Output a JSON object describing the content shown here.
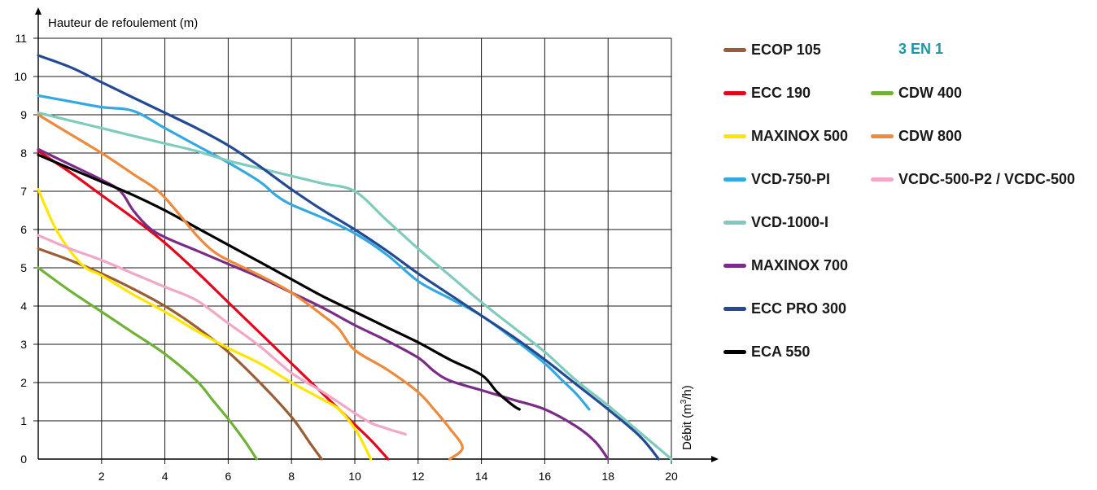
{
  "chart_data": {
    "type": "line",
    "ylabel": "Hauteur de refoulement (m)",
    "xlabel": "Débit (m³/h)",
    "xlabel_parts": {
      "pre": "Débit (m",
      "sup": "3",
      "post": "/h)"
    },
    "xlim": [
      0,
      20
    ],
    "ylim": [
      0,
      11
    ],
    "x_ticks": [
      2,
      4,
      6,
      8,
      10,
      12,
      14,
      16,
      18,
      20
    ],
    "y_ticks": [
      0,
      1,
      2,
      3,
      4,
      5,
      6,
      7,
      8,
      9,
      10,
      11
    ],
    "grid": true,
    "legend_group_title": "3 EN 1",
    "legend_group_color": "#1b96a4",
    "series": [
      {
        "name": "ECOP 105",
        "color": "#9b5e34",
        "points": [
          [
            0,
            5.5
          ],
          [
            1,
            5.2
          ],
          [
            2,
            4.85
          ],
          [
            3,
            4.45
          ],
          [
            4,
            4.0
          ],
          [
            5,
            3.45
          ],
          [
            6,
            2.8
          ],
          [
            7,
            2.0
          ],
          [
            8,
            1.1
          ],
          [
            8.6,
            0.4
          ],
          [
            8.95,
            0
          ]
        ]
      },
      {
        "name": "ECC 190",
        "color": "#e3061c",
        "points": [
          [
            0,
            8.05
          ],
          [
            1,
            7.5
          ],
          [
            2,
            6.9
          ],
          [
            3,
            6.3
          ],
          [
            4,
            5.65
          ],
          [
            5,
            4.9
          ],
          [
            6,
            4.1
          ],
          [
            7,
            3.3
          ],
          [
            8,
            2.5
          ],
          [
            9,
            1.7
          ],
          [
            10,
            0.9
          ],
          [
            10.5,
            0.5
          ],
          [
            11.05,
            0
          ]
        ]
      },
      {
        "name": "MAXINOX 500",
        "color": "#ffe600",
        "points": [
          [
            0,
            7.05
          ],
          [
            0.5,
            6.1
          ],
          [
            1,
            5.45
          ],
          [
            1.5,
            5.0
          ],
          [
            2,
            4.8
          ],
          [
            3,
            4.3
          ],
          [
            4,
            3.85
          ],
          [
            5,
            3.35
          ],
          [
            6,
            2.9
          ],
          [
            7,
            2.5
          ],
          [
            8,
            2.0
          ],
          [
            9,
            1.55
          ],
          [
            9.5,
            1.3
          ],
          [
            10,
            0.8
          ],
          [
            10.3,
            0.35
          ],
          [
            10.5,
            0
          ]
        ]
      },
      {
        "name": "VCD-750-PI",
        "color": "#34a9e1",
        "points": [
          [
            0,
            9.5
          ],
          [
            1,
            9.35
          ],
          [
            2,
            9.2
          ],
          [
            3,
            9.1
          ],
          [
            4,
            8.65
          ],
          [
            5,
            8.2
          ],
          [
            6,
            7.75
          ],
          [
            7,
            7.25
          ],
          [
            7.5,
            6.9
          ],
          [
            8,
            6.65
          ],
          [
            9,
            6.3
          ],
          [
            10,
            5.9
          ],
          [
            11,
            5.35
          ],
          [
            12,
            4.65
          ],
          [
            13,
            4.2
          ],
          [
            14,
            3.75
          ],
          [
            15,
            3.15
          ],
          [
            16,
            2.5
          ],
          [
            16.5,
            2.1
          ],
          [
            17,
            1.7
          ],
          [
            17.4,
            1.3
          ]
        ]
      },
      {
        "name": "VCD-1000-I",
        "color": "#7fcbbd",
        "points": [
          [
            0,
            9.05
          ],
          [
            1,
            8.85
          ],
          [
            2,
            8.65
          ],
          [
            3,
            8.45
          ],
          [
            4,
            8.25
          ],
          [
            5,
            8.05
          ],
          [
            6,
            7.8
          ],
          [
            7,
            7.6
          ],
          [
            8,
            7.4
          ],
          [
            9,
            7.2
          ],
          [
            10,
            7.0
          ],
          [
            11,
            6.25
          ],
          [
            12,
            5.5
          ],
          [
            13,
            4.8
          ],
          [
            14,
            4.1
          ],
          [
            15,
            3.45
          ],
          [
            16,
            2.8
          ],
          [
            17,
            2.05
          ],
          [
            18,
            1.4
          ],
          [
            19,
            0.7
          ],
          [
            20,
            0
          ]
        ]
      },
      {
        "name": "MAXINOX 700",
        "color": "#792d86",
        "points": [
          [
            0,
            8.1
          ],
          [
            1,
            7.7
          ],
          [
            2,
            7.3
          ],
          [
            2.6,
            7.0
          ],
          [
            3,
            6.5
          ],
          [
            3.5,
            6.05
          ],
          [
            4,
            5.8
          ],
          [
            5,
            5.45
          ],
          [
            6,
            5.1
          ],
          [
            7,
            4.75
          ],
          [
            8,
            4.35
          ],
          [
            9,
            3.95
          ],
          [
            10,
            3.5
          ],
          [
            11,
            3.1
          ],
          [
            12,
            2.65
          ],
          [
            12.5,
            2.3
          ],
          [
            13,
            2.05
          ],
          [
            14,
            1.8
          ],
          [
            15,
            1.55
          ],
          [
            16,
            1.3
          ],
          [
            17,
            0.85
          ],
          [
            17.6,
            0.45
          ],
          [
            18,
            0
          ]
        ]
      },
      {
        "name": "ECC PRO 300",
        "color": "#234b93",
        "points": [
          [
            0,
            10.55
          ],
          [
            1,
            10.25
          ],
          [
            2,
            9.85
          ],
          [
            3,
            9.45
          ],
          [
            4,
            9.05
          ],
          [
            5,
            8.65
          ],
          [
            6,
            8.2
          ],
          [
            7,
            7.65
          ],
          [
            8,
            7.05
          ],
          [
            9,
            6.5
          ],
          [
            10,
            6.0
          ],
          [
            11,
            5.45
          ],
          [
            12,
            4.85
          ],
          [
            13,
            4.3
          ],
          [
            14,
            3.75
          ],
          [
            15,
            3.2
          ],
          [
            16,
            2.6
          ],
          [
            17,
            1.95
          ],
          [
            18,
            1.3
          ],
          [
            19,
            0.6
          ],
          [
            19.6,
            0
          ]
        ]
      },
      {
        "name": "ECA 550",
        "color": "#000000",
        "points": [
          [
            0,
            7.95
          ],
          [
            1,
            7.6
          ],
          [
            2,
            7.25
          ],
          [
            3,
            6.9
          ],
          [
            4,
            6.5
          ],
          [
            5,
            6.05
          ],
          [
            6,
            5.6
          ],
          [
            7,
            5.15
          ],
          [
            8,
            4.7
          ],
          [
            9,
            4.25
          ],
          [
            10,
            3.85
          ],
          [
            11,
            3.45
          ],
          [
            12,
            3.05
          ],
          [
            13,
            2.6
          ],
          [
            14,
            2.2
          ],
          [
            14.5,
            1.75
          ],
          [
            15,
            1.4
          ],
          [
            15.2,
            1.3
          ]
        ]
      },
      {
        "name": "CDW 400",
        "color": "#6fb236",
        "points": [
          [
            0,
            5.0
          ],
          [
            1,
            4.4
          ],
          [
            2,
            3.85
          ],
          [
            3,
            3.3
          ],
          [
            4,
            2.75
          ],
          [
            5,
            2.05
          ],
          [
            5.5,
            1.55
          ],
          [
            6,
            1.05
          ],
          [
            6.5,
            0.5
          ],
          [
            6.9,
            0
          ]
        ]
      },
      {
        "name": "CDW 800",
        "color": "#ed8a3c",
        "points": [
          [
            0,
            9.0
          ],
          [
            1,
            8.5
          ],
          [
            2,
            8.0
          ],
          [
            3,
            7.45
          ],
          [
            3.8,
            7.0
          ],
          [
            4.5,
            6.35
          ],
          [
            5,
            5.85
          ],
          [
            5.5,
            5.45
          ],
          [
            6,
            5.2
          ],
          [
            7,
            4.8
          ],
          [
            8,
            4.35
          ],
          [
            9,
            3.75
          ],
          [
            9.5,
            3.4
          ],
          [
            10,
            2.85
          ],
          [
            11,
            2.35
          ],
          [
            12,
            1.75
          ],
          [
            12.5,
            1.3
          ],
          [
            13,
            0.8
          ],
          [
            13.4,
            0.3
          ],
          [
            13,
            0
          ]
        ]
      },
      {
        "name": "VCDC-500-P2 / VCDC-500",
        "color": "#f2a7c6",
        "points": [
          [
            0,
            5.85
          ],
          [
            1,
            5.5
          ],
          [
            2,
            5.2
          ],
          [
            3,
            4.85
          ],
          [
            4,
            4.5
          ],
          [
            5,
            4.15
          ],
          [
            6,
            3.55
          ],
          [
            7,
            2.95
          ],
          [
            8,
            2.25
          ],
          [
            9,
            1.75
          ],
          [
            10,
            1.2
          ],
          [
            10.5,
            0.95
          ],
          [
            11,
            0.8
          ],
          [
            11.6,
            0.65
          ]
        ]
      }
    ],
    "legend": {
      "column1": [
        "ECOP 105",
        "ECC 190",
        "MAXINOX 500",
        "VCD-750-PI",
        "VCD-1000-I",
        "MAXINOX 700",
        "ECC PRO 300",
        "ECA 550"
      ],
      "column2": [
        "CDW 400",
        "CDW 800",
        "VCDC-500-P2 / VCDC-500"
      ]
    }
  }
}
